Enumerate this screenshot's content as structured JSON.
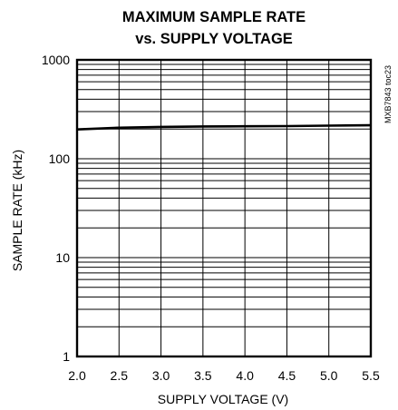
{
  "chart_data": {
    "type": "line",
    "title": "MAXIMUM SAMPLE RATE",
    "subtitle": "vs. SUPPLY VOLTAGE",
    "xlabel": "SUPPLY VOLTAGE (V)",
    "ylabel": "SAMPLE RATE (kHz)",
    "xlim": [
      2.0,
      5.5
    ],
    "ylim": [
      1,
      1000
    ],
    "yscale": "log",
    "grid": true,
    "x_ticks": [
      "2.0",
      "2.5",
      "3.0",
      "3.5",
      "4.0",
      "4.5",
      "5.0",
      "5.5"
    ],
    "y_ticks": [
      "1",
      "10",
      "100",
      "1000"
    ],
    "series": [
      {
        "x": [
          2.0,
          2.5,
          3.0,
          3.5,
          4.0,
          4.5,
          5.0,
          5.5
        ],
        "values": [
          198,
          206,
          210,
          212,
          213,
          214,
          216,
          218
        ]
      }
    ],
    "figure_code": "MXB7843 toc23",
    "line_color": "#000000"
  }
}
